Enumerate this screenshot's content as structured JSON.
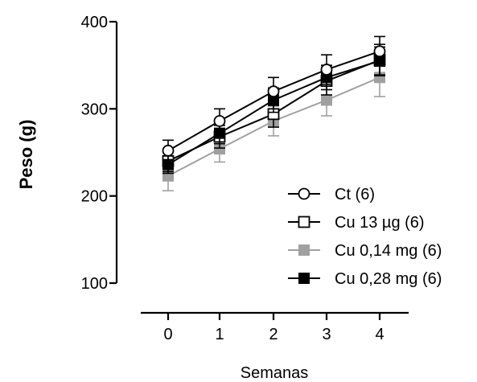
{
  "chart_data": {
    "type": "line",
    "xlabel": "Semanas",
    "ylabel": "Peso (g)",
    "x": [
      0,
      1,
      2,
      3,
      4
    ],
    "xlim": [
      -0.5,
      4.5
    ],
    "ylim": [
      100,
      400
    ],
    "yticks": [
      100,
      200,
      300,
      400
    ],
    "xticks": [
      0,
      1,
      2,
      3,
      4
    ],
    "grid": false,
    "legend_position": "right",
    "series": [
      {
        "name": "Ct (6)",
        "marker": "open-circle",
        "color": "#000000",
        "values": [
          252,
          286,
          320,
          345,
          366
        ],
        "errors": [
          12,
          14,
          16,
          17,
          17
        ]
      },
      {
        "name": "Cu 13 µg (6)",
        "marker": "open-square",
        "color": "#000000",
        "values": [
          240,
          268,
          294,
          332,
          356
        ],
        "errors": [
          12,
          13,
          15,
          16,
          18
        ]
      },
      {
        "name": "Cu 0,14 mg (6)",
        "marker": "filled-square",
        "color": "#a0a0a0",
        "values": [
          223,
          254,
          286,
          310,
          336
        ],
        "errors": [
          17,
          15,
          17,
          18,
          22
        ]
      },
      {
        "name": "Cu 0,28 mg (6)",
        "marker": "filled-square",
        "color": "#000000",
        "values": [
          236,
          272,
          310,
          336,
          355
        ],
        "errors": [
          10,
          12,
          14,
          14,
          16
        ]
      }
    ]
  }
}
